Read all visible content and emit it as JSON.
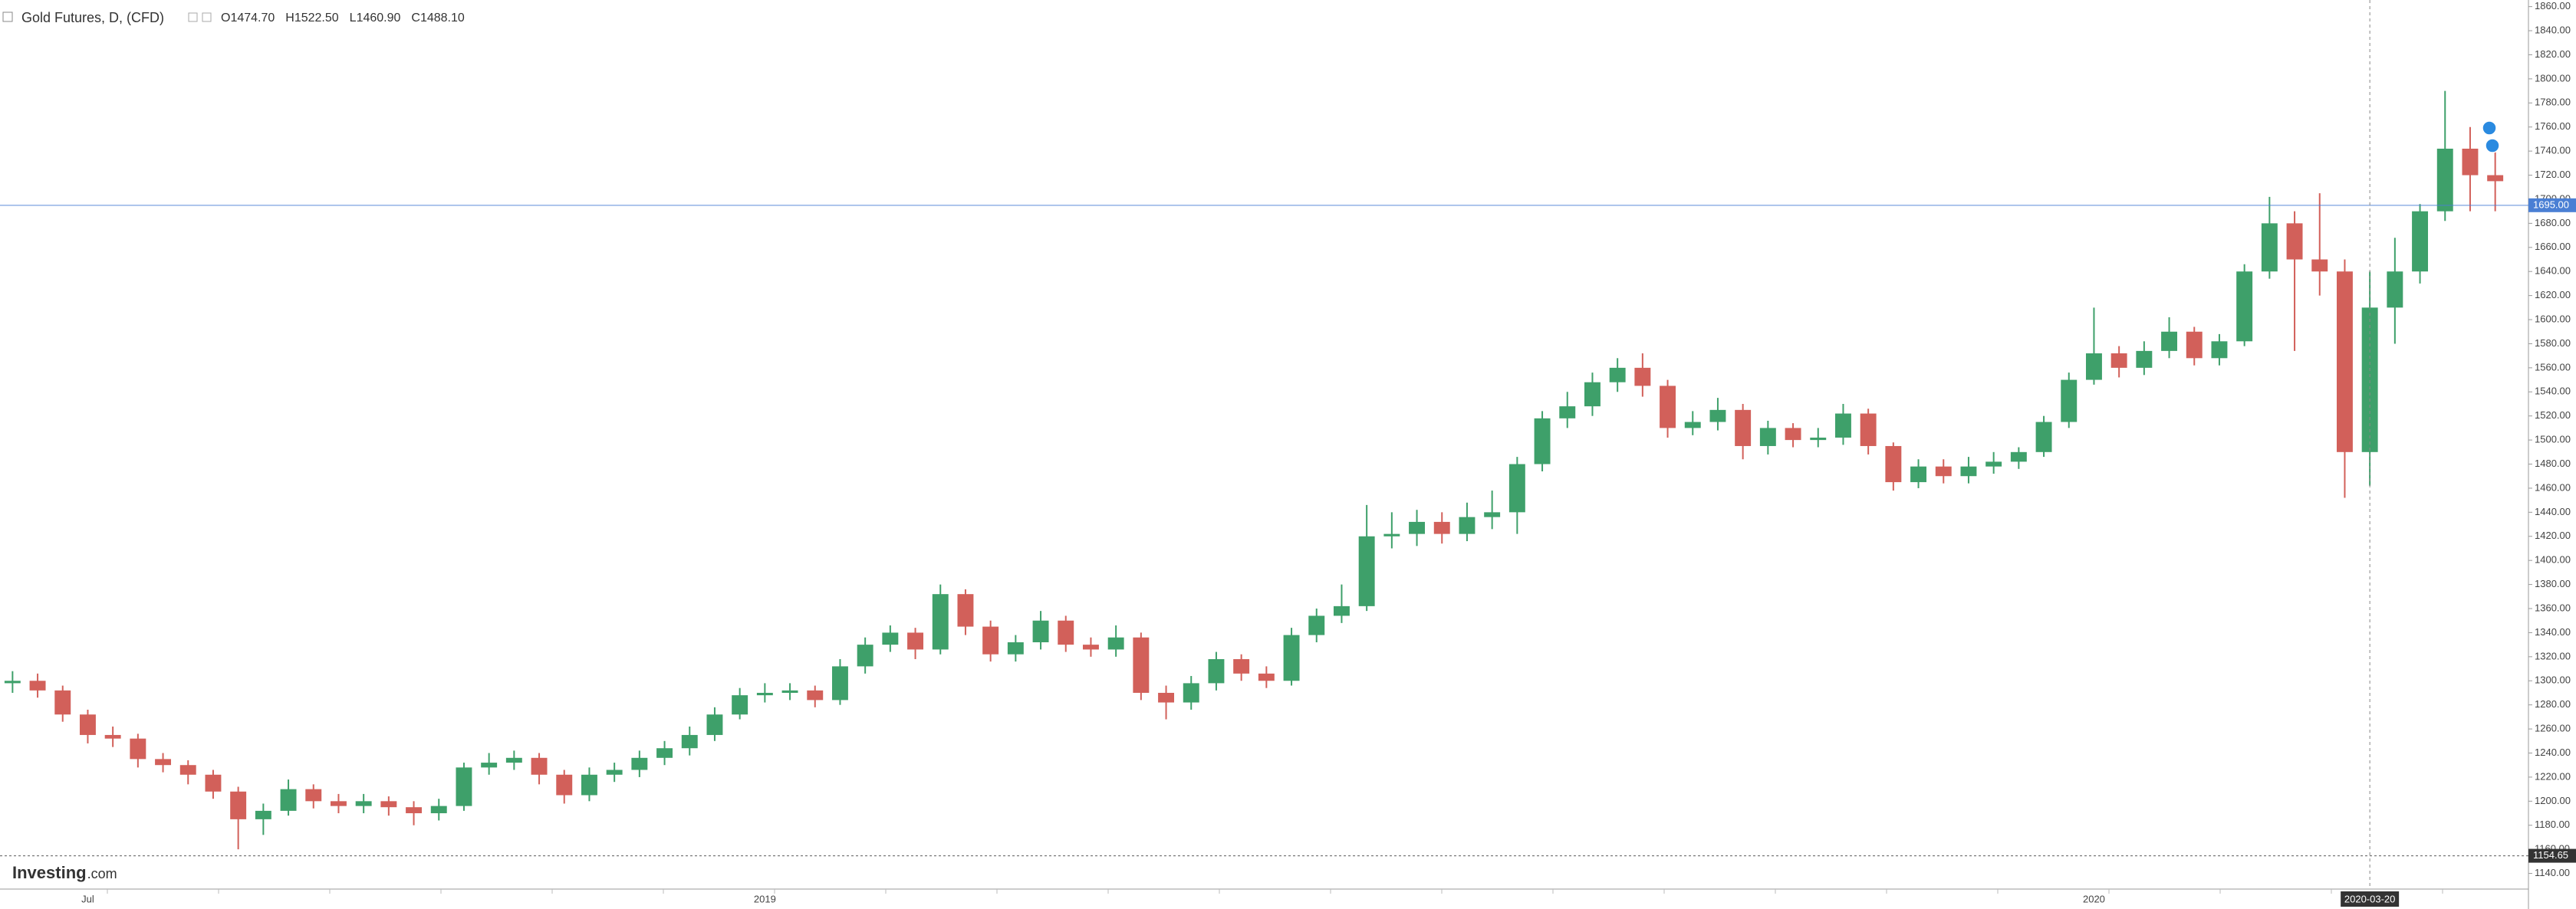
{
  "chart_data": {
    "type": "candlestick",
    "title": "Gold Futures, D, (CFD)",
    "ohlc_labels": [
      "O1474.70",
      "H1522.50",
      "L1460.90",
      "C1488.10"
    ],
    "logo": {
      "brand": "Investing",
      "suffix": ".com"
    },
    "crosshair_label": "2020-03-20",
    "up_color": "#3ea06a",
    "down_color": "#d2605a",
    "grid": false,
    "ylim": [
      1127,
      1865.5
    ],
    "yticks": [
      {
        "value": 1140,
        "label": "1140.00"
      },
      {
        "value": 1160,
        "label": "1160.00"
      },
      {
        "value": 1180,
        "label": "1180.00"
      },
      {
        "value": 1200,
        "label": "1200.00"
      },
      {
        "value": 1220,
        "label": "1220.00"
      },
      {
        "value": 1240,
        "label": "1240.00"
      },
      {
        "value": 1260,
        "label": "1260.00"
      },
      {
        "value": 1280,
        "label": "1280.00"
      },
      {
        "value": 1300,
        "label": "1300.00"
      },
      {
        "value": 1320,
        "label": "1320.00"
      },
      {
        "value": 1340,
        "label": "1340.00"
      },
      {
        "value": 1360,
        "label": "1360.00"
      },
      {
        "value": 1380,
        "label": "1380.00"
      },
      {
        "value": 1400,
        "label": "1400.00"
      },
      {
        "value": 1420,
        "label": "1420.00"
      },
      {
        "value": 1440,
        "label": "1440.00"
      },
      {
        "value": 1460,
        "label": "1460.00"
      },
      {
        "value": 1480,
        "label": "1480.00"
      },
      {
        "value": 1500,
        "label": "1500.00"
      },
      {
        "value": 1520,
        "label": "1520.00"
      },
      {
        "value": 1540,
        "label": "1540.00"
      },
      {
        "value": 1560,
        "label": "1560.00"
      },
      {
        "value": 1580,
        "label": "1580.00"
      },
      {
        "value": 1600,
        "label": "1600.00"
      },
      {
        "value": 1620,
        "label": "1620.00"
      },
      {
        "value": 1640,
        "label": "1640.00"
      },
      {
        "value": 1660,
        "label": "1660.00"
      },
      {
        "value": 1680,
        "label": "1680.00"
      },
      {
        "value": 1700,
        "label": "1700.00"
      },
      {
        "value": 1720,
        "label": "1720.00"
      },
      {
        "value": 1740,
        "label": "1740.00"
      },
      {
        "value": 1760,
        "label": "1760.00"
      },
      {
        "value": 1780,
        "label": "1780.00"
      },
      {
        "value": 1800,
        "label": "1800.00"
      },
      {
        "value": 1820,
        "label": "1820.00"
      },
      {
        "value": 1840,
        "label": "1840.00"
      },
      {
        "value": 1860,
        "label": "1860.00"
      }
    ],
    "price_lines": [
      {
        "value": 1695,
        "label": "1695.00",
        "color": "#4a7fd4"
      },
      {
        "value": 1154.65,
        "label": "1154.65",
        "color": "#333333"
      }
    ],
    "categories": [
      null,
      null,
      null,
      "Jul",
      null,
      null,
      null,
      null,
      null,
      null,
      null,
      null,
      null,
      null,
      null,
      null,
      null,
      null,
      null,
      null,
      null,
      null,
      null,
      null,
      null,
      null,
      null,
      null,
      null,
      null,
      "2019",
      null,
      null,
      null,
      null,
      null,
      null,
      null,
      null,
      null,
      null,
      null,
      null,
      null,
      null,
      null,
      null,
      null,
      null,
      null,
      null,
      null,
      null,
      null,
      null,
      null,
      null,
      null,
      null,
      null,
      null,
      null,
      null,
      null,
      null,
      null,
      null,
      null,
      null,
      null,
      null,
      null,
      null,
      null,
      null,
      null,
      null,
      null,
      null,
      null,
      null,
      null,
      null,
      "2020",
      null,
      null,
      null,
      null,
      null,
      null,
      null,
      null,
      null,
      null,
      null,
      null,
      null,
      null,
      null,
      null
    ],
    "open": [
      1298,
      1300,
      1292,
      1272,
      1255,
      1252,
      1235,
      1230,
      1222,
      1208,
      1185,
      1192,
      1210,
      1200,
      1196,
      1200,
      1195,
      1190,
      1196,
      1228,
      1232,
      1236,
      1222,
      1205,
      1222,
      1226,
      1236,
      1244,
      1255,
      1272,
      1288,
      1290,
      1292,
      1284,
      1312,
      1330,
      1340,
      1326,
      1372,
      1345,
      1322,
      1332,
      1350,
      1330,
      1326,
      1336,
      1290,
      1282,
      1298,
      1318,
      1306,
      1300,
      1338,
      1354,
      1362,
      1420,
      1422,
      1432,
      1422,
      1436,
      1440,
      1480,
      1518,
      1528,
      1548,
      1560,
      1545,
      1510,
      1515,
      1525,
      1495,
      1510,
      1500,
      1502,
      1522,
      1495,
      1465,
      1478,
      1470,
      1478,
      1482,
      1490,
      1515,
      1550,
      1572,
      1560,
      1574,
      1590,
      1568,
      1582,
      1640,
      1680,
      1650,
      1640,
      1490,
      1610,
      1640,
      1690,
      1742,
      1720
    ],
    "high": [
      1308,
      1306,
      1296,
      1276,
      1262,
      1256,
      1240,
      1234,
      1226,
      1212,
      1198,
      1218,
      1214,
      1206,
      1206,
      1204,
      1200,
      1202,
      1232,
      1240,
      1242,
      1240,
      1226,
      1228,
      1232,
      1242,
      1250,
      1262,
      1278,
      1294,
      1298,
      1298,
      1296,
      1318,
      1336,
      1346,
      1344,
      1380,
      1376,
      1350,
      1338,
      1358,
      1354,
      1336,
      1346,
      1340,
      1296,
      1304,
      1324,
      1322,
      1312,
      1344,
      1360,
      1380,
      1446,
      1440,
      1442,
      1440,
      1448,
      1458,
      1486,
      1524,
      1540,
      1556,
      1568,
      1572,
      1550,
      1524,
      1535,
      1530,
      1516,
      1514,
      1510,
      1530,
      1526,
      1498,
      1484,
      1484,
      1486,
      1490,
      1494,
      1520,
      1556,
      1610,
      1578,
      1582,
      1602,
      1594,
      1588,
      1646,
      1702,
      1690,
      1705,
      1650,
      1640,
      1668,
      1696,
      1790,
      1760,
      1745
    ],
    "low": [
      1290,
      1286,
      1266,
      1248,
      1245,
      1228,
      1224,
      1214,
      1202,
      1160,
      1172,
      1188,
      1194,
      1190,
      1190,
      1188,
      1180,
      1184,
      1192,
      1222,
      1226,
      1214,
      1198,
      1200,
      1216,
      1220,
      1230,
      1238,
      1250,
      1268,
      1282,
      1284,
      1278,
      1280,
      1306,
      1324,
      1318,
      1322,
      1338,
      1316,
      1316,
      1326,
      1324,
      1320,
      1320,
      1284,
      1268,
      1276,
      1292,
      1300,
      1294,
      1296,
      1332,
      1348,
      1358,
      1410,
      1412,
      1414,
      1416,
      1426,
      1422,
      1474,
      1510,
      1520,
      1540,
      1536,
      1502,
      1504,
      1508,
      1484,
      1488,
      1494,
      1494,
      1496,
      1488,
      1458,
      1460,
      1464,
      1464,
      1472,
      1476,
      1486,
      1510,
      1546,
      1552,
      1554,
      1568,
      1562,
      1562,
      1578,
      1634,
      1574,
      1620,
      1452,
      1462,
      1580,
      1630,
      1682,
      1690,
      1690
    ],
    "close": [
      1300,
      1292,
      1272,
      1255,
      1252,
      1235,
      1230,
      1222,
      1208,
      1185,
      1192,
      1210,
      1200,
      1196,
      1200,
      1195,
      1190,
      1196,
      1228,
      1232,
      1236,
      1222,
      1205,
      1222,
      1226,
      1236,
      1244,
      1255,
      1272,
      1288,
      1290,
      1292,
      1284,
      1312,
      1330,
      1340,
      1326,
      1372,
      1345,
      1322,
      1332,
      1350,
      1330,
      1326,
      1336,
      1290,
      1282,
      1298,
      1318,
      1306,
      1300,
      1338,
      1354,
      1362,
      1420,
      1422,
      1432,
      1422,
      1436,
      1440,
      1480,
      1518,
      1528,
      1548,
      1560,
      1545,
      1510,
      1515,
      1525,
      1495,
      1510,
      1500,
      1502,
      1522,
      1495,
      1465,
      1478,
      1470,
      1478,
      1482,
      1490,
      1515,
      1550,
      1572,
      1560,
      1574,
      1590,
      1568,
      1582,
      1640,
      1680,
      1650,
      1640,
      1490,
      1610,
      1640,
      1690,
      1742,
      1720,
      1715
    ]
  }
}
